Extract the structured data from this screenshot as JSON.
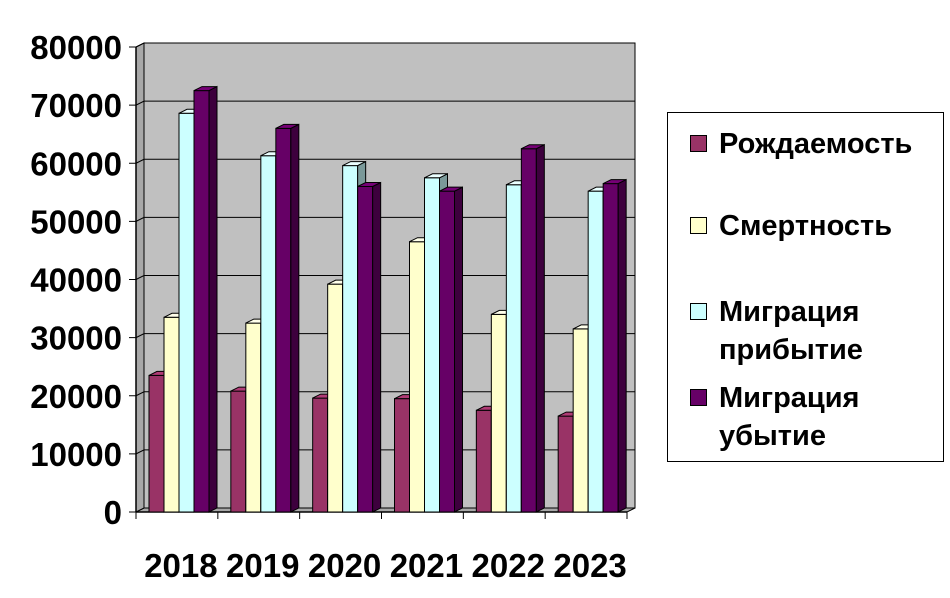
{
  "chart_data": {
    "type": "bar",
    "style": "3d-clustered-column",
    "categories": [
      "2018",
      "2019",
      "2020",
      "2021",
      "2022",
      "2023"
    ],
    "ylim": [
      0,
      80000
    ],
    "yticks": [
      "0",
      "10000",
      "20000",
      "30000",
      "40000",
      "50000",
      "60000",
      "70000",
      "80000"
    ],
    "grid": true,
    "legend_position": "right",
    "series": [
      {
        "name": "Рождаемость",
        "color": "#993366",
        "values": [
          23500,
          20800,
          19600,
          19500,
          17500,
          16500
        ]
      },
      {
        "name": "Смертность",
        "color": "#FFFFCC",
        "values": [
          33500,
          32500,
          39200,
          46500,
          34000,
          31500
        ]
      },
      {
        "name": "Миграция прибытие",
        "color": "#CCFFFF",
        "values": [
          68600,
          61300,
          59600,
          57500,
          56300,
          55200
        ]
      },
      {
        "name": "Миграция убытие",
        "color": "#660066",
        "values": [
          72500,
          66000,
          56000,
          55200,
          62500,
          56500
        ]
      }
    ],
    "plot_background": "#C0C0C0"
  }
}
